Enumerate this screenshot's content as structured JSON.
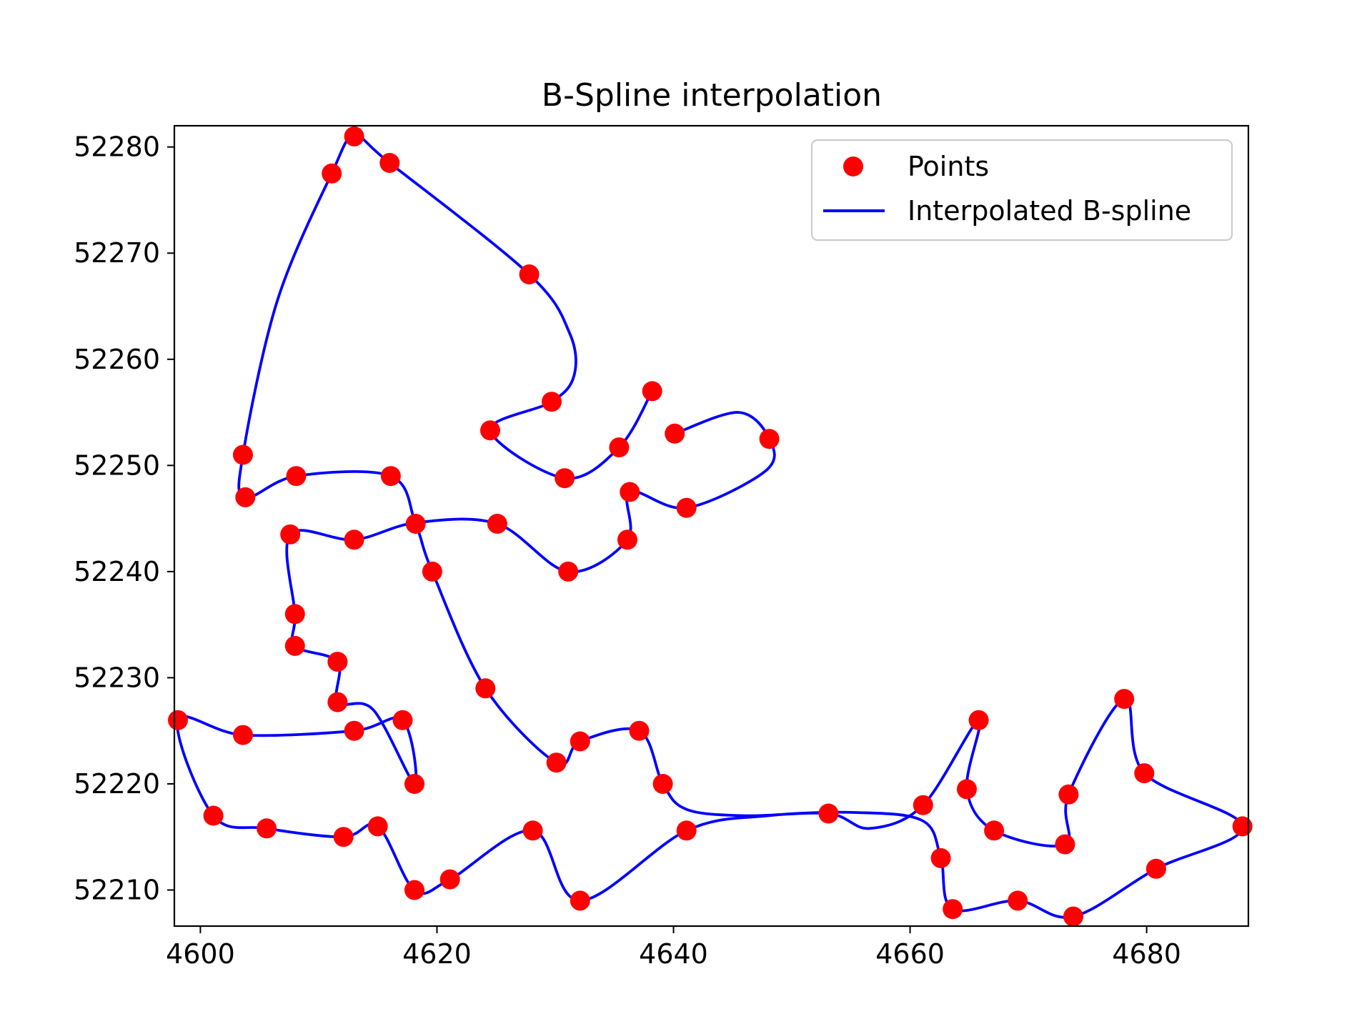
{
  "chart_data": {
    "type": "line",
    "title": "B-Spline interpolation",
    "xlabel": "",
    "ylabel": "",
    "xlim": [
      4597.8,
      4688.6
    ],
    "ylim": [
      52206.6,
      52282.0
    ],
    "xticks": [
      4600,
      4620,
      4640,
      4660,
      4680
    ],
    "yticks": [
      52210,
      52220,
      52230,
      52240,
      52250,
      52260,
      52270,
      52280
    ],
    "xtick_labels": [
      "4600",
      "4620",
      "4640",
      "4660",
      "4680"
    ],
    "ytick_labels": [
      "52210",
      "52220",
      "52230",
      "52240",
      "52250",
      "52260",
      "52270",
      "52280"
    ],
    "grid": false,
    "legend_position": "top-right",
    "series": [
      {
        "name": "Points",
        "kind": "scatter",
        "color": "#ff0000",
        "points": [
          [
            4638.2,
            52257.0
          ],
          [
            4635.4,
            52251.7
          ],
          [
            4630.8,
            52248.8
          ],
          [
            4624.5,
            52253.3
          ],
          [
            4629.7,
            52256.0
          ],
          [
            4627.8,
            52268.0
          ],
          [
            4616.0,
            52278.5
          ],
          [
            4613.0,
            52281.0
          ],
          [
            4611.1,
            52277.5
          ],
          [
            4603.6,
            52251.0
          ],
          [
            4603.8,
            52247.0
          ],
          [
            4608.1,
            52249.0
          ],
          [
            4616.1,
            52249.0
          ],
          [
            4618.2,
            52244.5
          ],
          [
            4619.6,
            52240.0
          ],
          [
            4624.1,
            52229.0
          ],
          [
            4630.1,
            52222.0
          ],
          [
            4632.1,
            52224.0
          ],
          [
            4637.1,
            52225.0
          ],
          [
            4639.1,
            52220.0
          ],
          [
            4641.1,
            52215.6
          ],
          [
            4632.1,
            52209.0
          ],
          [
            4628.1,
            52215.6
          ],
          [
            4621.1,
            52211.0
          ],
          [
            4618.1,
            52210.0
          ],
          [
            4615.0,
            52216.0
          ],
          [
            4612.1,
            52215.0
          ],
          [
            4605.6,
            52215.8
          ],
          [
            4601.1,
            52217.0
          ],
          [
            4598.1,
            52226.0
          ],
          [
            4603.6,
            52224.6
          ],
          [
            4613.0,
            52225.0
          ],
          [
            4617.1,
            52226.0
          ],
          [
            4618.1,
            52220.0
          ],
          [
            4611.6,
            52227.7
          ],
          [
            4611.6,
            52231.5
          ],
          [
            4608.0,
            52233.0
          ],
          [
            4608.0,
            52236.0
          ],
          [
            4607.6,
            52243.5
          ],
          [
            4613.0,
            52243.0
          ],
          [
            4625.1,
            52244.5
          ],
          [
            4631.1,
            52240.0
          ],
          [
            4636.1,
            52243.0
          ],
          [
            4636.3,
            52247.5
          ],
          [
            4641.1,
            52246.0
          ],
          [
            4648.1,
            52252.5
          ],
          [
            4640.1,
            52253.0
          ],
          [
            4653.1,
            52217.2
          ],
          [
            4661.1,
            52218.0
          ],
          [
            4665.8,
            52226.0
          ],
          [
            4664.8,
            52219.5
          ],
          [
            4667.1,
            52215.6
          ],
          [
            4673.1,
            52214.3
          ],
          [
            4673.4,
            52219.0
          ],
          [
            4678.1,
            52228.0
          ],
          [
            4679.8,
            52221.0
          ],
          [
            4688.1,
            52216.0
          ],
          [
            4680.8,
            52212.0
          ],
          [
            4673.8,
            52207.5
          ],
          [
            4669.1,
            52209.0
          ],
          [
            4663.6,
            52208.2
          ],
          [
            4662.6,
            52213.0
          ]
        ]
      },
      {
        "name": "Interpolated B-spline",
        "kind": "line",
        "color": "#0000ff",
        "points": [
          [
            4638.2,
            52257.0
          ],
          [
            4635.4,
            52251.7
          ],
          [
            4630.8,
            52248.8
          ],
          [
            4624.5,
            52253.3
          ],
          [
            4629.7,
            52256.0
          ],
          [
            4631.6,
            52258.5
          ],
          [
            4631.2,
            52262.5
          ],
          [
            4627.8,
            52268.0
          ],
          [
            4616.0,
            52278.5
          ],
          [
            4613.0,
            52281.0
          ],
          [
            4611.1,
            52277.5
          ],
          [
            4606.5,
            52265.5
          ],
          [
            4603.6,
            52251.0
          ],
          [
            4603.8,
            52247.0
          ],
          [
            4608.1,
            52249.0
          ],
          [
            4616.1,
            52249.0
          ],
          [
            4618.2,
            52244.5
          ],
          [
            4619.6,
            52240.0
          ],
          [
            4624.1,
            52229.0
          ],
          [
            4630.1,
            52222.0
          ],
          [
            4632.1,
            52224.0
          ],
          [
            4637.1,
            52225.0
          ],
          [
            4639.1,
            52220.0
          ],
          [
            4641.1,
            52217.6
          ],
          [
            4646.0,
            52217.0
          ],
          [
            4653.1,
            52217.2
          ],
          [
            4656.6,
            52215.8
          ],
          [
            4661.1,
            52218.0
          ],
          [
            4665.8,
            52226.0
          ],
          [
            4664.8,
            52219.5
          ],
          [
            4667.1,
            52215.6
          ],
          [
            4673.1,
            52214.3
          ],
          [
            4673.4,
            52219.0
          ],
          [
            4678.1,
            52228.0
          ],
          [
            4679.8,
            52221.0
          ],
          [
            4688.1,
            52216.0
          ],
          [
            4680.8,
            52212.0
          ],
          [
            4673.8,
            52207.5
          ],
          [
            4669.1,
            52209.0
          ],
          [
            4663.6,
            52208.2
          ],
          [
            4662.6,
            52213.0
          ],
          [
            4661.1,
            52216.5
          ],
          [
            4655.6,
            52217.3
          ],
          [
            4648.0,
            52217.0
          ],
          [
            4641.1,
            52215.6
          ],
          [
            4632.1,
            52209.0
          ],
          [
            4628.1,
            52215.6
          ],
          [
            4621.1,
            52211.0
          ],
          [
            4618.1,
            52210.0
          ],
          [
            4615.0,
            52216.0
          ],
          [
            4612.1,
            52215.0
          ],
          [
            4605.6,
            52215.8
          ],
          [
            4601.1,
            52217.0
          ],
          [
            4598.1,
            52226.0
          ],
          [
            4603.6,
            52224.6
          ],
          [
            4613.0,
            52225.0
          ],
          [
            4617.1,
            52226.0
          ],
          [
            4618.1,
            52220.0
          ],
          [
            4614.6,
            52227.0
          ],
          [
            4611.6,
            52227.7
          ],
          [
            4611.6,
            52231.5
          ],
          [
            4608.0,
            52233.0
          ],
          [
            4608.0,
            52236.0
          ],
          [
            4607.6,
            52243.5
          ],
          [
            4613.0,
            52243.0
          ],
          [
            4618.2,
            52244.6
          ],
          [
            4625.1,
            52244.5
          ],
          [
            4631.1,
            52240.0
          ],
          [
            4636.1,
            52243.0
          ],
          [
            4636.3,
            52247.5
          ],
          [
            4641.1,
            52246.0
          ],
          [
            4647.8,
            52249.5
          ],
          [
            4648.1,
            52252.5
          ],
          [
            4645.5,
            52255.0
          ],
          [
            4640.1,
            52253.0
          ]
        ]
      }
    ]
  }
}
